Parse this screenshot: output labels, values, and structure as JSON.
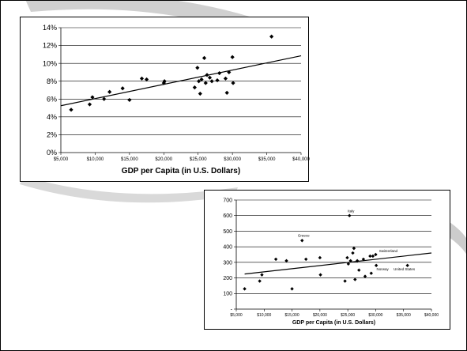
{
  "chart_data": [
    {
      "type": "scatter",
      "title": "",
      "xlabel": "GDP per Capita (in U.S. Dollars)",
      "ylabel": "",
      "xlim": [
        5000,
        40000
      ],
      "ylim": [
        0,
        14
      ],
      "x_ticks": [
        5000,
        10000,
        15000,
        20000,
        25000,
        30000,
        35000,
        40000
      ],
      "x_tick_labels": [
        "$5,000",
        "$10,000",
        "$15,000",
        "$20,000",
        "$25,000",
        "$30,000",
        "$35,000",
        "$40,000"
      ],
      "y_ticks": [
        0,
        2,
        4,
        6,
        8,
        10,
        12,
        14
      ],
      "y_tick_labels": [
        "0%",
        "2%",
        "4%",
        "6%",
        "8%",
        "10%",
        "12%",
        "14%"
      ],
      "grid": "horizontal",
      "legend": "none",
      "marker_color": "#000000",
      "points": [
        {
          "x": 6500,
          "y": 4.8
        },
        {
          "x": 9200,
          "y": 5.4
        },
        {
          "x": 9600,
          "y": 6.2
        },
        {
          "x": 11300,
          "y": 6.0
        },
        {
          "x": 12100,
          "y": 6.8
        },
        {
          "x": 14000,
          "y": 7.2
        },
        {
          "x": 15000,
          "y": 5.9
        },
        {
          "x": 16800,
          "y": 8.3
        },
        {
          "x": 17500,
          "y": 8.2
        },
        {
          "x": 20000,
          "y": 7.8
        },
        {
          "x": 20100,
          "y": 8.0
        },
        {
          "x": 24500,
          "y": 7.3
        },
        {
          "x": 24900,
          "y": 9.5
        },
        {
          "x": 25100,
          "y": 8.0
        },
        {
          "x": 25300,
          "y": 6.6
        },
        {
          "x": 25500,
          "y": 8.2
        },
        {
          "x": 25900,
          "y": 10.6
        },
        {
          "x": 26100,
          "y": 7.8
        },
        {
          "x": 26300,
          "y": 8.7
        },
        {
          "x": 26700,
          "y": 8.4
        },
        {
          "x": 27000,
          "y": 8.0
        },
        {
          "x": 27800,
          "y": 8.1
        },
        {
          "x": 28100,
          "y": 8.9
        },
        {
          "x": 29000,
          "y": 8.3
        },
        {
          "x": 29200,
          "y": 6.7
        },
        {
          "x": 29500,
          "y": 9.0
        },
        {
          "x": 30000,
          "y": 10.7
        },
        {
          "x": 30100,
          "y": 7.8
        },
        {
          "x": 35700,
          "y": 13.0
        }
      ],
      "trendline": {
        "x": [
          5000,
          40000
        ],
        "y": [
          5.25,
          10.85
        ]
      }
    },
    {
      "type": "scatter",
      "title": "",
      "xlabel": "GDP per Capita (in U.S. Dollars)",
      "ylabel": "",
      "xlim": [
        5000,
        40000
      ],
      "ylim": [
        0,
        700
      ],
      "x_ticks": [
        5000,
        10000,
        15000,
        20000,
        25000,
        30000,
        35000,
        40000
      ],
      "x_tick_labels": [
        "$5,000",
        "$10,000",
        "$15,000",
        "$20,000",
        "$25,000",
        "$30,000",
        "$35,000",
        "$40,000"
      ],
      "y_ticks": [
        0,
        100,
        200,
        300,
        400,
        500,
        600,
        700
      ],
      "y_tick_labels": [
        "-",
        "100",
        "200",
        "300",
        "400",
        "500",
        "600",
        "700"
      ],
      "grid": "horizontal",
      "legend": "none",
      "marker_color": "#000000",
      "points": [
        {
          "x": 6500,
          "y": 130
        },
        {
          "x": 9200,
          "y": 180
        },
        {
          "x": 9600,
          "y": 220
        },
        {
          "x": 12100,
          "y": 320
        },
        {
          "x": 14000,
          "y": 310
        },
        {
          "x": 15000,
          "y": 130
        },
        {
          "x": 16800,
          "y": 440,
          "label": "Greece"
        },
        {
          "x": 17500,
          "y": 320
        },
        {
          "x": 20000,
          "y": 330
        },
        {
          "x": 20100,
          "y": 220
        },
        {
          "x": 24500,
          "y": 180
        },
        {
          "x": 24900,
          "y": 330
        },
        {
          "x": 25100,
          "y": 290
        },
        {
          "x": 25300,
          "y": 600,
          "label": "Italy"
        },
        {
          "x": 25500,
          "y": 310
        },
        {
          "x": 25900,
          "y": 360
        },
        {
          "x": 26100,
          "y": 390
        },
        {
          "x": 26300,
          "y": 190
        },
        {
          "x": 26700,
          "y": 310
        },
        {
          "x": 27000,
          "y": 250
        },
        {
          "x": 27800,
          "y": 320
        },
        {
          "x": 28100,
          "y": 210
        },
        {
          "x": 29000,
          "y": 340
        },
        {
          "x": 29200,
          "y": 230
        },
        {
          "x": 29500,
          "y": 340
        },
        {
          "x": 30000,
          "y": 350,
          "label": "Switzerland"
        },
        {
          "x": 30100,
          "y": 280,
          "label": "Norway"
        },
        {
          "x": 35700,
          "y": 280,
          "label": "United States"
        }
      ],
      "trendline": {
        "x": [
          6500,
          40000
        ],
        "y": [
          225,
          360
        ]
      }
    }
  ]
}
